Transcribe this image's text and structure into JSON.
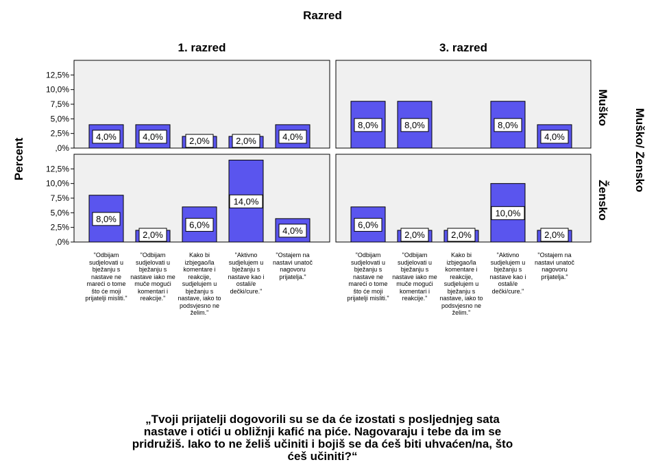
{
  "chart_data": {
    "type": "bar",
    "title": "Razred",
    "ylabel": "Percent",
    "row_panel_title": "Muško/ Žensko",
    "xlabel": "„Tvoji prijatelji dogovorili su se da će izostati s posljednjeg sata nastave i otići u obližnji kafić na piće. Nagovaraju i tebe da im se pridružiš. Iako to ne želiš učiniti i bojiš se da ćeš biti uhvaćen/na, što ćeš učiniti?“",
    "ylim": [
      0,
      15
    ],
    "yticks": [
      "12,5%",
      "10,0%",
      "7,5%",
      "5,0%",
      "2,5%",
      ",0%"
    ],
    "ytick_values": [
      12.5,
      10.0,
      7.5,
      5.0,
      2.5,
      0
    ],
    "columns": [
      "1. razred",
      "3. razred"
    ],
    "rows": [
      "Muško",
      "Žensko"
    ],
    "categories": [
      "\"Odbijam sudjelovati u bježanju s nastave ne mareći o tome što će moji prijatelji misliti.\"",
      "\"Odbijam sudjelovati u bježanju s nastave iako me muče mogući komentari i reakcije.\"",
      "Kako bi izbjegao/la komentare i reakcije, sudjelujem u bježanju s nastave, iako to podsvjesno ne želim.\"",
      "\"Aktivno sudjelujem u bježanju s nastave kao i ostali/e dečki/cure.\"",
      "\"Ostajem na nastavi unatoč nagovoru prijatelja.\""
    ],
    "panels": [
      {
        "column": "1. razred",
        "row": "Muško",
        "values": [
          4.0,
          4.0,
          2.0,
          2.0,
          4.0
        ],
        "labels": [
          "4,0%",
          "4,0%",
          "2,0%",
          "2,0%",
          "4,0%"
        ]
      },
      {
        "column": "3. razred",
        "row": "Muško",
        "values": [
          8.0,
          8.0,
          null,
          8.0,
          4.0
        ],
        "labels": [
          "8,0%",
          "8,0%",
          "",
          "8,0%",
          "4,0%"
        ]
      },
      {
        "column": "1. razred",
        "row": "Žensko",
        "values": [
          8.0,
          2.0,
          6.0,
          14.0,
          4.0
        ],
        "labels": [
          "8,0%",
          "2,0%",
          "6,0%",
          "14,0%",
          "4,0%"
        ]
      },
      {
        "column": "3. razred",
        "row": "Žensko",
        "values": [
          6.0,
          2.0,
          2.0,
          10.0,
          2.0
        ],
        "labels": [
          "6,0%",
          "2,0%",
          "2,0%",
          "10,0%",
          "2,0%"
        ]
      }
    ],
    "bar_color": "#5a55ee",
    "panel_bg": "#f0f0f0",
    "grid": false,
    "legend": "none"
  }
}
